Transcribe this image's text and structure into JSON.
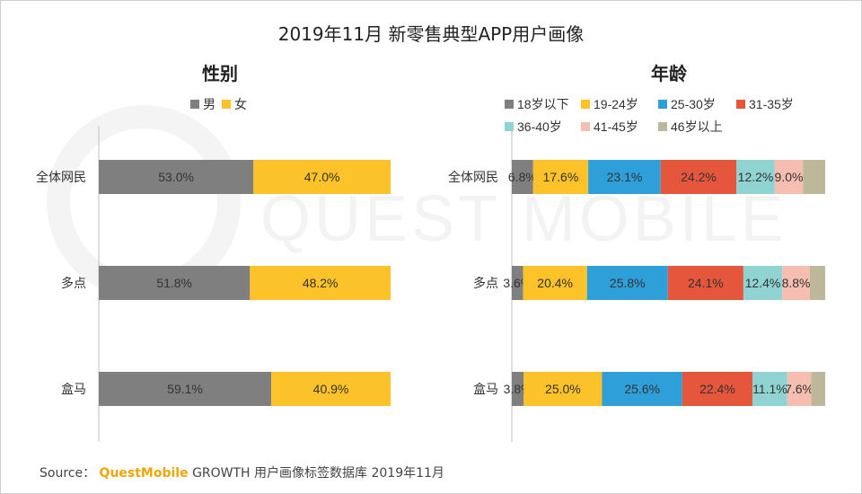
{
  "title": "2019年11月 新零售典型APP用户画像",
  "source": {
    "prefix": "Source：",
    "brand": "QuestMobile",
    "suffix": "GROWTH 用户画像标签数据库  2019年11月"
  },
  "watermark": "QUEST MOBILE",
  "colors": {
    "男": "#7f7f7f",
    "女": "#fbc22a",
    "18岁以下": "#7f7f7f",
    "19-24岁": "#fbc22a",
    "25-30岁": "#2e9fd8",
    "31-35岁": "#e5563c",
    "36-40岁": "#8fd3d3",
    "41-45岁": "#f6beb0",
    "46岁以上": "#beb89a"
  },
  "chart_data": [
    {
      "type": "bar",
      "orientation": "horizontal",
      "stacked": "percent",
      "title": "性别",
      "categories": [
        "全体网民",
        "多点",
        "盒马"
      ],
      "legend_position": "top",
      "series": [
        {
          "name": "男",
          "values": [
            53.0,
            51.8,
            59.1
          ]
        },
        {
          "name": "女",
          "values": [
            47.0,
            48.2,
            40.9
          ]
        }
      ]
    },
    {
      "type": "bar",
      "orientation": "horizontal",
      "stacked": "percent",
      "title": "年龄",
      "categories": [
        "全体网民",
        "多点",
        "盒马"
      ],
      "legend_position": "top",
      "series": [
        {
          "name": "18岁以下",
          "values": [
            6.8,
            3.6,
            3.8
          ]
        },
        {
          "name": "19-24岁",
          "values": [
            17.6,
            20.4,
            25.0
          ]
        },
        {
          "name": "25-30岁",
          "values": [
            23.1,
            25.8,
            25.6
          ]
        },
        {
          "name": "31-35岁",
          "values": [
            24.2,
            24.1,
            22.4
          ]
        },
        {
          "name": "36-40岁",
          "values": [
            12.2,
            12.4,
            11.1
          ]
        },
        {
          "name": "41-45岁",
          "values": [
            9.0,
            8.8,
            7.6
          ]
        },
        {
          "name": "46岁以上",
          "values": [
            7.1,
            4.9,
            4.5
          ]
        }
      ],
      "data_labels_shown_for": [
        "18岁以下",
        "19-24岁",
        "25-30岁",
        "31-35岁",
        "36-40岁",
        "41-45岁"
      ]
    }
  ]
}
